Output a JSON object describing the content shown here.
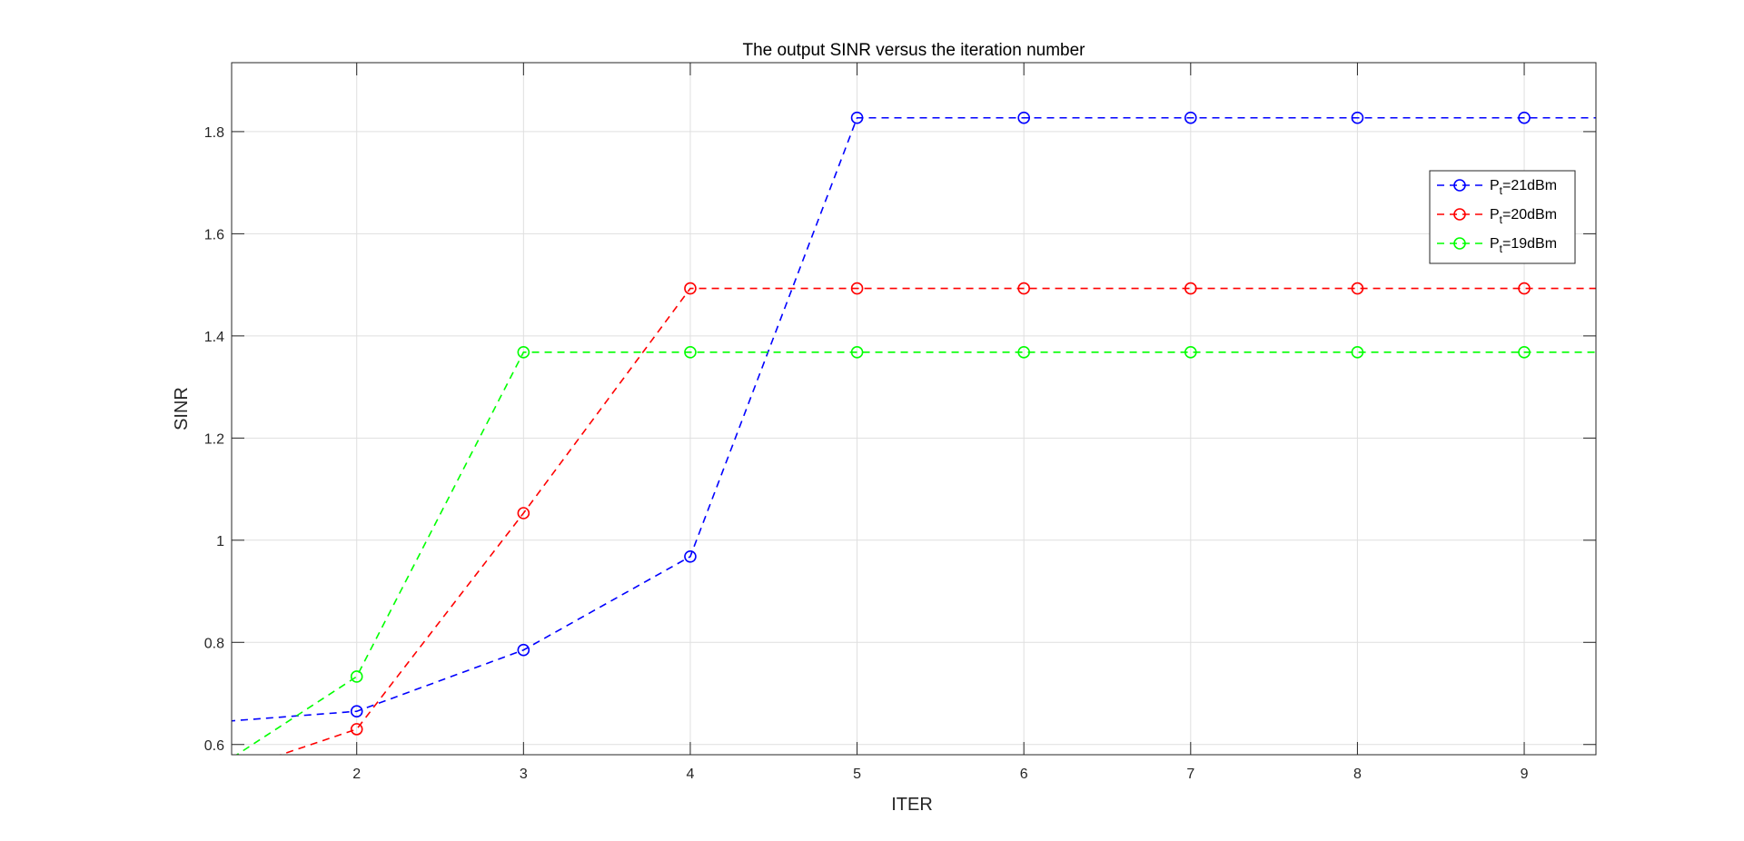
{
  "chart_data": {
    "type": "line",
    "title": "The output SINR versus the iteration number",
    "xlabel": "ITER",
    "ylabel": "SINR",
    "xlim": [
      1.25,
      9.43
    ],
    "ylim": [
      0.58,
      1.935
    ],
    "xticks": [
      2,
      3,
      4,
      5,
      6,
      7,
      8,
      9
    ],
    "xtick_labels": [
      "2",
      "3",
      "4",
      "5",
      "6",
      "7",
      "8",
      "9"
    ],
    "yticks": [
      0.6,
      0.8,
      1.0,
      1.2,
      1.4,
      1.6,
      1.8
    ],
    "ytick_labels": [
      "0.6",
      "0.8",
      "1",
      "1.2",
      "1.4",
      "1.6",
      "1.8"
    ],
    "grid": true,
    "legend_position": "top-right",
    "x": [
      1,
      2,
      3,
      4,
      5,
      6,
      7,
      8,
      9,
      10
    ],
    "series": [
      {
        "name": "Pt=21dBm",
        "legend_main": "P",
        "legend_sub": "t",
        "legend_rest": "=21dBm",
        "color": "#0000ff",
        "line_style": "dashed",
        "marker": "circle",
        "values": [
          0.64,
          0.665,
          0.785,
          0.968,
          1.827,
          1.827,
          1.827,
          1.827,
          1.827,
          1.827
        ]
      },
      {
        "name": "Pt=20dBm",
        "legend_main": "P",
        "legend_sub": "t",
        "legend_rest": "=20dBm",
        "color": "#ff0000",
        "line_style": "dashed",
        "marker": "circle",
        "values": [
          0.52,
          0.63,
          1.053,
          1.493,
          1.493,
          1.493,
          1.493,
          1.493,
          1.493,
          1.493
        ]
      },
      {
        "name": "Pt=19dBm",
        "legend_main": "P",
        "legend_sub": "t",
        "legend_rest": "=19dBm",
        "color": "#00ff00",
        "line_style": "dashed",
        "marker": "circle",
        "values": [
          0.52,
          0.733,
          1.368,
          1.368,
          1.368,
          1.368,
          1.368,
          1.368,
          1.368,
          1.368
        ]
      }
    ]
  },
  "colors": {
    "axis": "#262626",
    "grid": "#dfdfdf",
    "background": "#ffffff"
  }
}
